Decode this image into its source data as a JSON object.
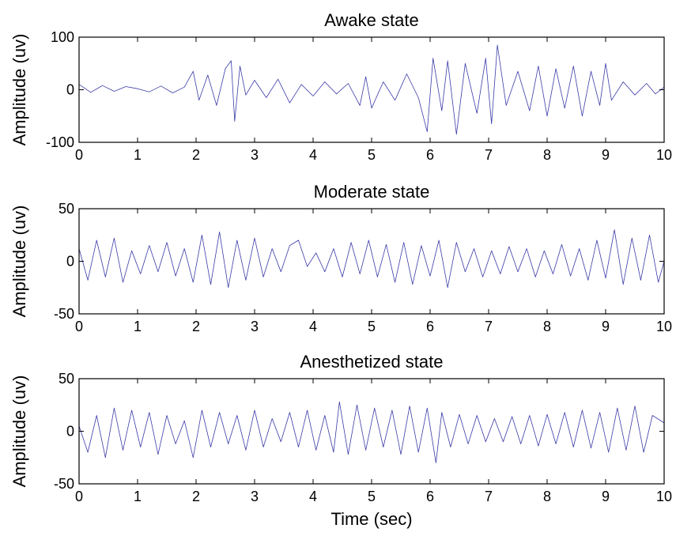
{
  "chart_data": [
    {
      "type": "line",
      "title": "Awake state",
      "ylabel": "Amplitude (uv)",
      "xlabel": "",
      "xlim": [
        0,
        10
      ],
      "ylim": [
        -100,
        100
      ],
      "xticks": [
        "0",
        "1",
        "2",
        "3",
        "4",
        "5",
        "6",
        "7",
        "8",
        "9",
        "10"
      ],
      "yticks": [
        "100",
        "0",
        "-100"
      ],
      "series_color": "#3a3aa8",
      "series": [
        {
          "x": [
            0,
            0.2,
            0.4,
            0.6,
            0.8,
            1.0,
            1.2,
            1.4,
            1.6,
            1.8,
            1.95,
            2.05,
            2.2,
            2.35,
            2.5,
            2.6,
            2.66,
            2.75,
            2.85,
            3.0,
            3.2,
            3.4,
            3.6,
            3.8,
            4.0,
            4.2,
            4.4,
            4.6,
            4.8,
            4.9,
            5.0,
            5.2,
            5.4,
            5.6,
            5.8,
            5.95,
            6.05,
            6.2,
            6.3,
            6.45,
            6.6,
            6.8,
            6.95,
            7.05,
            7.15,
            7.3,
            7.5,
            7.7,
            7.85,
            8.0,
            8.15,
            8.3,
            8.45,
            8.6,
            8.75,
            8.9,
            9.0,
            9.1,
            9.3,
            9.5,
            9.7,
            9.85,
            10.0
          ],
          "y": [
            10,
            -5,
            8,
            -3,
            6,
            2,
            -4,
            7,
            -6,
            5,
            35,
            -20,
            28,
            -30,
            40,
            55,
            -60,
            45,
            -10,
            18,
            -15,
            20,
            -25,
            10,
            -12,
            15,
            -8,
            12,
            -30,
            25,
            -35,
            15,
            -20,
            30,
            -15,
            -80,
            60,
            -40,
            55,
            -85,
            50,
            -45,
            60,
            -65,
            85,
            -30,
            35,
            -40,
            45,
            -50,
            40,
            -35,
            45,
            -50,
            35,
            -30,
            50,
            -20,
            15,
            -10,
            12,
            -8,
            5
          ]
        }
      ]
    },
    {
      "type": "line",
      "title": "Moderate state",
      "ylabel": "Amplitude (uv)",
      "xlabel": "",
      "xlim": [
        0,
        10
      ],
      "ylim": [
        -50,
        50
      ],
      "xticks": [
        "0",
        "1",
        "2",
        "3",
        "4",
        "5",
        "6",
        "7",
        "8",
        "9",
        "10"
      ],
      "yticks": [
        "50",
        "0",
        "-50"
      ],
      "series_color": "#3a3aa8",
      "series": [
        {
          "x": [
            0,
            0.15,
            0.3,
            0.45,
            0.6,
            0.75,
            0.9,
            1.05,
            1.2,
            1.35,
            1.5,
            1.65,
            1.8,
            1.95,
            2.1,
            2.25,
            2.4,
            2.55,
            2.7,
            2.85,
            3.0,
            3.15,
            3.3,
            3.45,
            3.6,
            3.75,
            3.9,
            4.05,
            4.2,
            4.35,
            4.5,
            4.65,
            4.8,
            4.95,
            5.1,
            5.25,
            5.4,
            5.55,
            5.7,
            5.85,
            6.0,
            6.15,
            6.3,
            6.45,
            6.6,
            6.75,
            6.9,
            7.05,
            7.2,
            7.35,
            7.5,
            7.65,
            7.8,
            7.95,
            8.1,
            8.25,
            8.4,
            8.55,
            8.7,
            8.85,
            9.0,
            9.15,
            9.3,
            9.45,
            9.6,
            9.75,
            9.9,
            10.0
          ],
          "y": [
            12,
            -18,
            20,
            -15,
            22,
            -20,
            10,
            -12,
            15,
            -10,
            18,
            -14,
            12,
            -20,
            25,
            -22,
            28,
            -25,
            20,
            -18,
            22,
            -15,
            12,
            -10,
            15,
            20,
            -5,
            8,
            -10,
            12,
            -15,
            18,
            -12,
            20,
            -15,
            16,
            -20,
            18,
            -22,
            15,
            -14,
            20,
            -25,
            18,
            -10,
            12,
            -15,
            10,
            -12,
            14,
            -10,
            12,
            -15,
            10,
            -12,
            16,
            -14,
            12,
            -18,
            20,
            -16,
            30,
            -22,
            22,
            -18,
            25,
            -20,
            0
          ]
        }
      ]
    },
    {
      "type": "line",
      "title": "Anesthetized state",
      "ylabel": "Amplitude (uv)",
      "xlabel": "Time (sec)",
      "xlim": [
        0,
        10
      ],
      "ylim": [
        -50,
        50
      ],
      "xticks": [
        "0",
        "1",
        "2",
        "3",
        "4",
        "5",
        "6",
        "7",
        "8",
        "9",
        "10"
      ],
      "yticks": [
        "50",
        "0",
        "-50"
      ],
      "series_color": "#3a3aa8",
      "series": [
        {
          "x": [
            0,
            0.15,
            0.3,
            0.45,
            0.6,
            0.75,
            0.9,
            1.05,
            1.2,
            1.35,
            1.5,
            1.65,
            1.8,
            1.95,
            2.1,
            2.25,
            2.4,
            2.55,
            2.7,
            2.85,
            3.0,
            3.15,
            3.3,
            3.45,
            3.6,
            3.75,
            3.9,
            4.05,
            4.2,
            4.35,
            4.45,
            4.6,
            4.75,
            4.9,
            5.05,
            5.2,
            5.35,
            5.5,
            5.65,
            5.8,
            5.95,
            6.1,
            6.2,
            6.35,
            6.5,
            6.65,
            6.8,
            6.95,
            7.1,
            7.25,
            7.4,
            7.55,
            7.7,
            7.85,
            8.0,
            8.15,
            8.3,
            8.45,
            8.6,
            8.75,
            8.9,
            9.05,
            9.2,
            9.35,
            9.5,
            9.65,
            9.8,
            10.0
          ],
          "y": [
            5,
            -20,
            15,
            -25,
            22,
            -18,
            20,
            -15,
            18,
            -22,
            15,
            -12,
            10,
            -25,
            20,
            -15,
            18,
            -12,
            15,
            -18,
            20,
            -15,
            12,
            -10,
            18,
            -15,
            20,
            -18,
            15,
            -20,
            28,
            -22,
            25,
            -18,
            22,
            -15,
            20,
            -22,
            24,
            -20,
            22,
            -30,
            18,
            -15,
            16,
            -12,
            15,
            -10,
            12,
            -10,
            14,
            -12,
            15,
            -14,
            16,
            -12,
            18,
            -15,
            20,
            -16,
            18,
            -20,
            22,
            -18,
            24,
            -20,
            15,
            8
          ]
        }
      ]
    }
  ]
}
